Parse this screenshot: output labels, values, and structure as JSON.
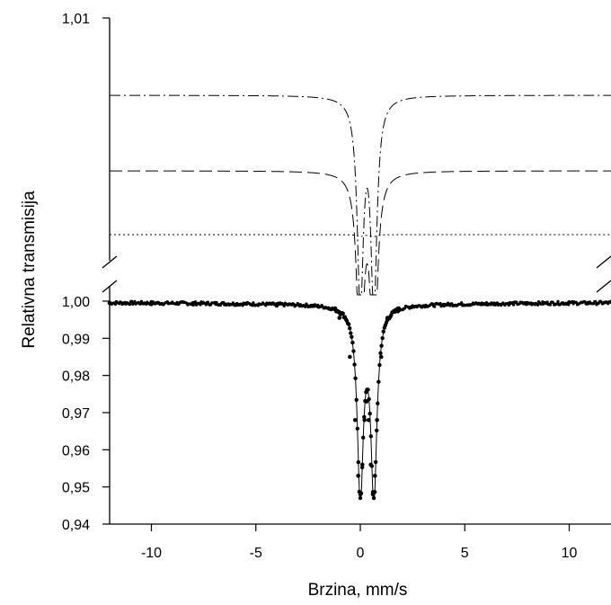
{
  "chart_data": {
    "type": "line",
    "title": "",
    "xlabel": "Brzina, mm/s",
    "ylabel": "Relativna transmisija",
    "xlim": [
      -12,
      12
    ],
    "ylim_lower": [
      0.94,
      1.002
    ],
    "ylim_upper_label": "1,01",
    "broken_y_axis": true,
    "x_ticks": [
      "-10",
      "-5",
      "0",
      "5",
      "10"
    ],
    "x_tick_values": [
      -10,
      -5,
      0,
      5,
      10
    ],
    "y_ticks": [
      "0,94",
      "0,95",
      "0,96",
      "0,97",
      "0,98",
      "0,99",
      "1,00",
      "1,01"
    ],
    "y_tick_values": [
      0.94,
      0.95,
      0.96,
      0.97,
      0.98,
      0.99,
      1.0,
      1.01
    ],
    "grid": false,
    "legend": "none",
    "series": [
      {
        "style": "markers-with-line",
        "x": [
          -12,
          -10,
          -8,
          -6,
          -4,
          -2,
          -1.5,
          -1,
          -0.5,
          -0.25,
          -0.1,
          0,
          0.1,
          0.2,
          0.3,
          0.4,
          0.5,
          0.6,
          0.7,
          0.8,
          1.0,
          1.3,
          1.8,
          2.5,
          4,
          6,
          8,
          10,
          12
        ],
        "y": [
          0.9995,
          0.9992,
          0.9991,
          0.999,
          0.9988,
          0.9985,
          0.998,
          0.9955,
          0.985,
          0.968,
          0.953,
          0.948,
          0.956,
          0.968,
          0.973,
          0.968,
          0.956,
          0.948,
          0.953,
          0.968,
          0.985,
          0.9955,
          0.998,
          0.9986,
          0.999,
          0.9992,
          0.9994,
          0.9997,
          0.9998
        ]
      },
      {
        "style": "dash-dot",
        "description_of_role": "upper subspectrum doublet",
        "x": [
          -12,
          -1.5,
          -0.8,
          -0.4,
          -0.1,
          0.2,
          0.4,
          0.6,
          0.8,
          1.2,
          1.8,
          12
        ],
        "y_offset_level": "top",
        "depth_relative": 1.0
      },
      {
        "style": "dashed",
        "description_of_role": "middle subspectrum doublet",
        "y_offset_level": "middle",
        "depth_relative": 1.0
      },
      {
        "style": "dotted",
        "description_of_role": "lower flat subspectrum",
        "y_offset_level": "bottom",
        "depth_relative": 0.02
      }
    ],
    "subspectrum_centers": [
      0.0,
      0.65
    ],
    "subspectrum_width": 0.35
  }
}
